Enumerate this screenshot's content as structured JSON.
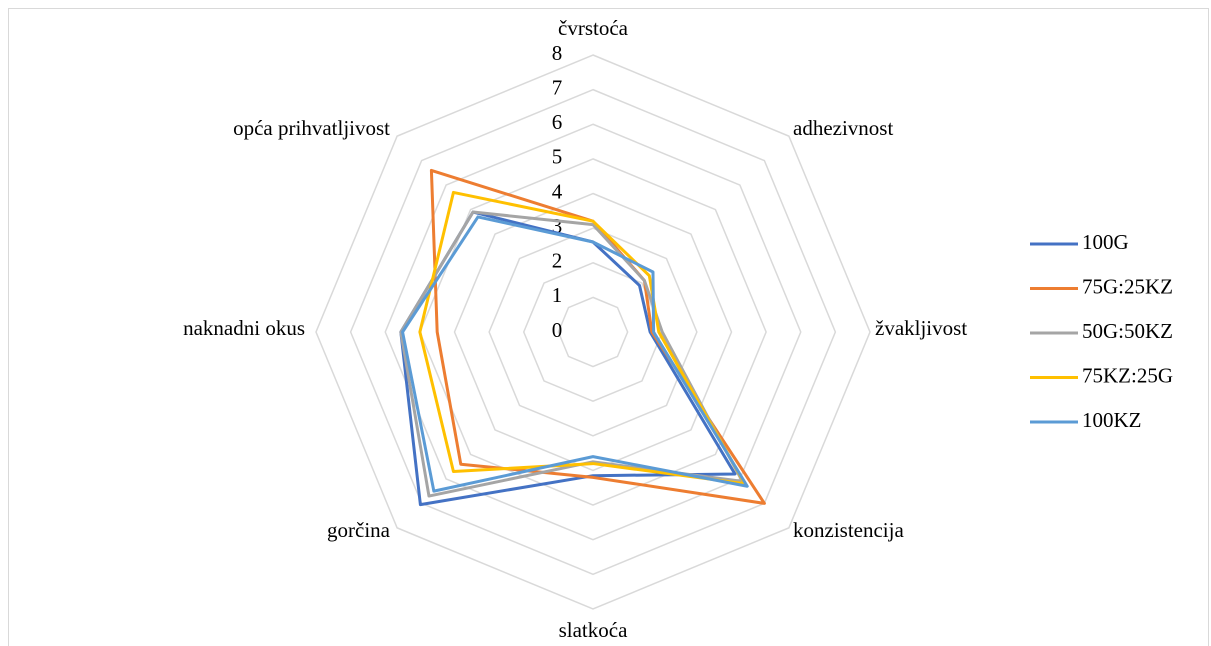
{
  "chart_data": {
    "type": "radar",
    "categories": [
      "čvrstoća",
      "adhezivnost",
      "žvakljivost",
      "konzistencija",
      "slatkoća",
      "gorčina",
      "naknadni okus",
      "opća prihvatljivost"
    ],
    "ylim": [
      0,
      8
    ],
    "yticks": [
      0,
      1,
      2,
      3,
      4,
      5,
      6,
      7,
      8
    ],
    "grid": true,
    "legend": "right",
    "series": [
      {
        "name": "100G",
        "color": "#4472c4",
        "values": [
          2.6,
          1.9,
          1.65,
          5.8,
          4.15,
          7.05,
          5.55,
          4.9
        ]
      },
      {
        "name": "75G:25KZ",
        "color": "#ed7d31",
        "values": [
          3.2,
          2.1,
          1.7,
          7.0,
          4.2,
          5.4,
          4.5,
          6.6
        ]
      },
      {
        "name": "50G:50KZ",
        "color": "#a5a5a5",
        "values": [
          3.1,
          2.1,
          2.0,
          6.1,
          3.75,
          6.7,
          5.55,
          4.9
        ]
      },
      {
        "name": "75KZ:25G",
        "color": "#ffc000",
        "values": [
          3.2,
          2.3,
          1.9,
          6.2,
          3.8,
          5.7,
          5.0,
          5.7
        ]
      },
      {
        "name": "100KZ",
        "color": "#5b9bd5",
        "values": [
          2.6,
          2.45,
          1.75,
          6.3,
          3.6,
          6.5,
          5.5,
          4.7
        ]
      }
    ]
  }
}
